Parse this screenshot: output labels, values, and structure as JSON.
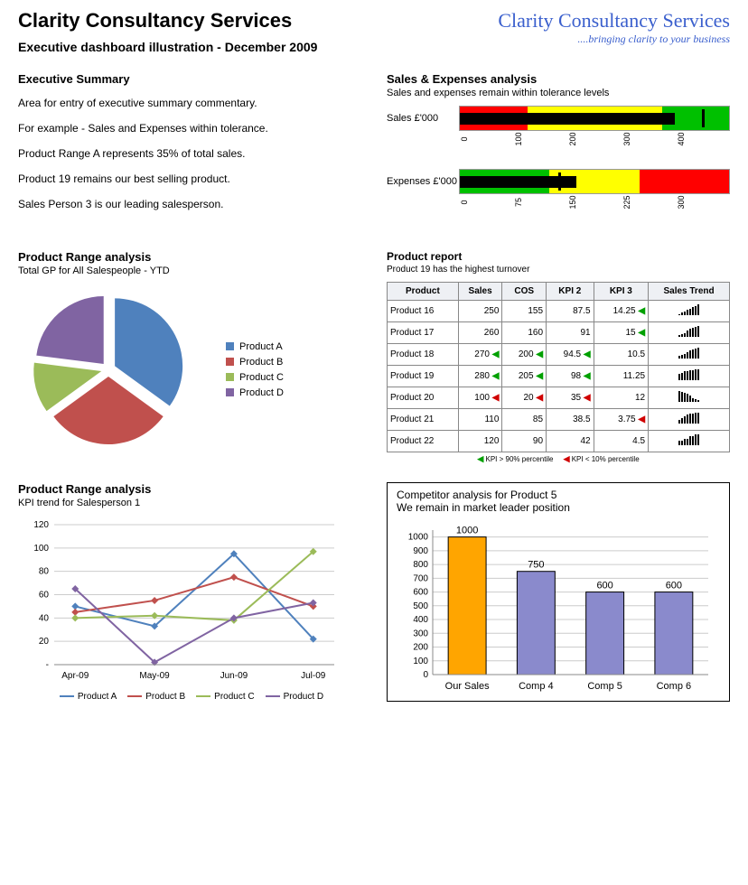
{
  "header": {
    "title": "Clarity Consultancy Services",
    "subtitle": "Executive dashboard illustration - December 2009",
    "logo_main": "Clarity Consultancy Services",
    "logo_tag": "....bringing clarity to your business",
    "logo_color": "#3a5fcd"
  },
  "exec_summary": {
    "title": "Executive Summary",
    "lines": [
      "Area for entry of executive summary commentary.",
      "For example - Sales and Expenses within tolerance.",
      "Product Range A represents 35% of total sales.",
      "Product 19 remains our best selling product.",
      "Sales Person 3 is our leading salesperson."
    ]
  },
  "sales_expenses": {
    "title": "Sales & Expenses analysis",
    "subtitle": "Sales and expenses remain within tolerance levels",
    "charts": [
      {
        "label": "Sales £'000",
        "zones": [
          {
            "from": 0,
            "to": 100,
            "color": "#ff0000"
          },
          {
            "from": 100,
            "to": 300,
            "color": "#ffff00"
          },
          {
            "from": 300,
            "to": 400,
            "color": "#00c000"
          }
        ],
        "value": 320,
        "marker": 360,
        "axis": [
          0,
          100,
          200,
          300,
          400
        ]
      },
      {
        "label": "Expenses £'000",
        "zones": [
          {
            "from": 0,
            "to": 100,
            "color": "#00c000"
          },
          {
            "from": 100,
            "to": 200,
            "color": "#ffff00"
          },
          {
            "from": 200,
            "to": 300,
            "color": "#ff0000"
          }
        ],
        "value": 130,
        "marker": 110,
        "axis": [
          0,
          75,
          150,
          225,
          300
        ]
      }
    ]
  },
  "product_range_pie": {
    "title": "Product Range analysis",
    "subtitle": "Total GP for All Salespeople - YTD",
    "type": "pie",
    "exploded": true,
    "slices": [
      {
        "label": "Product A",
        "value": 35,
        "color": "#4f81bd"
      },
      {
        "label": "Product B",
        "value": 30,
        "color": "#c0504d"
      },
      {
        "label": "Product C",
        "value": 12,
        "color": "#9bbb59"
      },
      {
        "label": "Product D",
        "value": 23,
        "color": "#8064a2"
      }
    ],
    "legend_marker": "■"
  },
  "product_report": {
    "title": "Product report",
    "subtitle": "Product 19 has the highest turnover",
    "columns": [
      "Product",
      "Sales",
      "COS",
      "KPI 2",
      "KPI 3",
      "Sales Trend"
    ],
    "rows": [
      {
        "product": "Product 16",
        "sales": "250",
        "cos": "155",
        "kpi2": "87.5",
        "kpi3": "14.25",
        "k2f": "",
        "k3f": "g",
        "salesf": "",
        "cosf": "",
        "spark": [
          1,
          2,
          3,
          4,
          5,
          6,
          7,
          8
        ]
      },
      {
        "product": "Product 17",
        "sales": "260",
        "cos": "160",
        "kpi2": "91",
        "kpi3": "15",
        "k2f": "",
        "k3f": "g",
        "salesf": "",
        "cosf": "",
        "spark": [
          2,
          3,
          4,
          6,
          8,
          9,
          10,
          11
        ]
      },
      {
        "product": "Product 18",
        "sales": "270",
        "cos": "200",
        "kpi2": "94.5",
        "kpi3": "10.5",
        "k2f": "g",
        "k3f": "",
        "salesf": "g",
        "cosf": "g",
        "spark": [
          3,
          4,
          5,
          6,
          8,
          9,
          10,
          11
        ]
      },
      {
        "product": "Product 19",
        "sales": "280",
        "cos": "205",
        "kpi2": "98",
        "kpi3": "11.25",
        "k2f": "g",
        "k3f": "",
        "salesf": "g",
        "cosf": "g",
        "spark": [
          6,
          7,
          8,
          8,
          9,
          9,
          10,
          10
        ]
      },
      {
        "product": "Product 20",
        "sales": "100",
        "cos": "20",
        "kpi2": "35",
        "kpi3": "12",
        "k2f": "r",
        "k3f": "",
        "salesf": "r",
        "cosf": "r",
        "spark": [
          11,
          10,
          9,
          8,
          6,
          4,
          3,
          2
        ]
      },
      {
        "product": "Product 21",
        "sales": "110",
        "cos": "85",
        "kpi2": "38.5",
        "kpi3": "3.75",
        "k2f": "",
        "k3f": "r",
        "salesf": "",
        "cosf": "",
        "spark": [
          3,
          5,
          7,
          8,
          9,
          9,
          10,
          10
        ]
      },
      {
        "product": "Product 22",
        "sales": "120",
        "cos": "90",
        "kpi2": "42",
        "kpi3": "4.5",
        "k2f": "",
        "k3f": "",
        "salesf": "",
        "cosf": "",
        "spark": [
          2,
          2,
          3,
          3,
          4,
          4,
          5,
          5
        ]
      }
    ],
    "footer_left": "KPI > 90% percentile",
    "footer_right": "KPI < 10% percentile"
  },
  "kpi_trend": {
    "title": "Product Range analysis",
    "subtitle": "KPI trend for Salesperson 1",
    "type": "line",
    "x_labels": [
      "Apr-09",
      "May-09",
      "Jun-09",
      "Jul-09"
    ],
    "y_ticks": [
      0,
      20,
      40,
      60,
      80,
      100,
      120
    ],
    "ylim": [
      0,
      120
    ],
    "grid_color": "#cccccc",
    "series": [
      {
        "name": "Product A",
        "color": "#4f81bd",
        "values": [
          50,
          33,
          95,
          22
        ]
      },
      {
        "name": "Product B",
        "color": "#c0504d",
        "values": [
          45,
          55,
          75,
          50
        ]
      },
      {
        "name": "Product C",
        "color": "#9bbb59",
        "values": [
          40,
          42,
          38,
          97
        ]
      },
      {
        "name": "Product D",
        "color": "#8064a2",
        "values": [
          65,
          2,
          40,
          53
        ]
      }
    ],
    "marker": "diamond"
  },
  "competitor": {
    "title": "Competitor analysis for Product 5",
    "subtitle": "We remain in market leader position",
    "type": "bar",
    "y_ticks": [
      0,
      100,
      200,
      300,
      400,
      500,
      600,
      700,
      800,
      900,
      1000
    ],
    "ylim": [
      0,
      1050
    ],
    "grid_color": "#cccccc",
    "bars": [
      {
        "label": "Our Sales",
        "value": 1000,
        "color": "#ffa500"
      },
      {
        "label": "Comp 4",
        "value": 750,
        "color": "#8a8acc"
      },
      {
        "label": "Comp 5",
        "value": 600,
        "color": "#8a8acc"
      },
      {
        "label": "Comp 6",
        "value": 600,
        "color": "#8a8acc"
      }
    ],
    "bar_border": "#000000",
    "bar_width": 0.55
  }
}
